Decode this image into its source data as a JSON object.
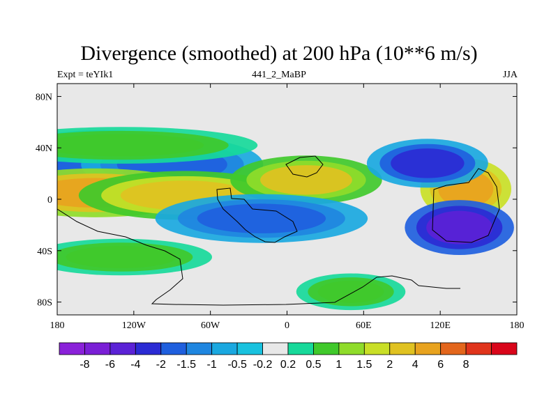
{
  "chart_data": {
    "type": "heatmap",
    "title": "Divergence (smoothed) at 200 hPa (10**6 m/s)",
    "subtitle_left": "Expt = teYIk1",
    "subtitle_center": "441_2_MaBP",
    "subtitle_right": "JJA",
    "xlim": [
      -180,
      180
    ],
    "ylim": [
      -90,
      90
    ],
    "x_ticks": [
      {
        "value": -180,
        "label": "180"
      },
      {
        "value": -120,
        "label": "120W"
      },
      {
        "value": -60,
        "label": "60W"
      },
      {
        "value": 0,
        "label": "0"
      },
      {
        "value": 60,
        "label": "60E"
      },
      {
        "value": 120,
        "label": "120E"
      },
      {
        "value": 180,
        "label": "180"
      }
    ],
    "y_ticks": [
      {
        "value": 80,
        "label": "80N"
      },
      {
        "value": 40,
        "label": "40N"
      },
      {
        "value": 0,
        "label": "0"
      },
      {
        "value": -40,
        "label": "40S"
      },
      {
        "value": -80,
        "label": "80S"
      }
    ],
    "colorbar": {
      "colors": [
        "#8a21d9",
        "#7a1fd6",
        "#5b22d6",
        "#2b2bd4",
        "#1f5fde",
        "#1f86e0",
        "#1aa8e0",
        "#19c2df",
        "#e8e8e8",
        "#17d99a",
        "#40c92b",
        "#8fdc2a",
        "#c9df27",
        "#e0c221",
        "#e8a31f",
        "#e3661c",
        "#e0341b",
        "#d9051a"
      ],
      "labels": [
        "-8",
        "-6",
        "-4",
        "-2",
        "-1.5",
        "-1",
        "-0.5",
        "-0.2",
        "0.2",
        "0.5",
        "1",
        "1.5",
        "2",
        "4",
        "6",
        "8"
      ]
    },
    "features": [
      {
        "name": "northern-mid-lat-blue-band-west",
        "lon": -145,
        "lat": 30,
        "sx": 35,
        "sy": 10,
        "value": -2
      },
      {
        "name": "northern-mid-lat-blue-band-central",
        "lon": -90,
        "lat": 27,
        "sx": 30,
        "sy": 9,
        "value": -2
      },
      {
        "name": "northern-green-band-40n",
        "lon": -130,
        "lat": 42,
        "sx": 45,
        "sy": 6,
        "value": 0.8
      },
      {
        "name": "tropical-orange-band-pacific",
        "lon": -150,
        "lat": 5,
        "sx": 35,
        "sy": 8,
        "value": 4
      },
      {
        "name": "tropical-orange-band-atlantic",
        "lon": -80,
        "lat": 3,
        "sx": 35,
        "sy": 8,
        "value": 2.5
      },
      {
        "name": "africa-yellow-max",
        "lon": 15,
        "lat": 15,
        "sx": 25,
        "sy": 8,
        "value": 2
      },
      {
        "name": "asia-red-max",
        "lon": 140,
        "lat": 8,
        "sx": 15,
        "sy": 10,
        "value": 5
      },
      {
        "name": "asia-blue-min",
        "lon": 110,
        "lat": 28,
        "sx": 20,
        "sy": 8,
        "value": -2.5
      },
      {
        "name": "west-pacific-purple-min",
        "lon": 135,
        "lat": -22,
        "sx": 18,
        "sy": 9,
        "value": -5
      },
      {
        "name": "south-america-blue-min",
        "lon": -20,
        "lat": -15,
        "sx": 35,
        "sy": 8,
        "value": -2
      },
      {
        "name": "southern-green-band-40s",
        "lon": -130,
        "lat": -45,
        "sx": 30,
        "sy": 6,
        "value": 0.8
      },
      {
        "name": "south-indian-green-patch",
        "lon": 50,
        "lat": -72,
        "sx": 18,
        "sy": 6,
        "value": 0.8
      }
    ]
  }
}
